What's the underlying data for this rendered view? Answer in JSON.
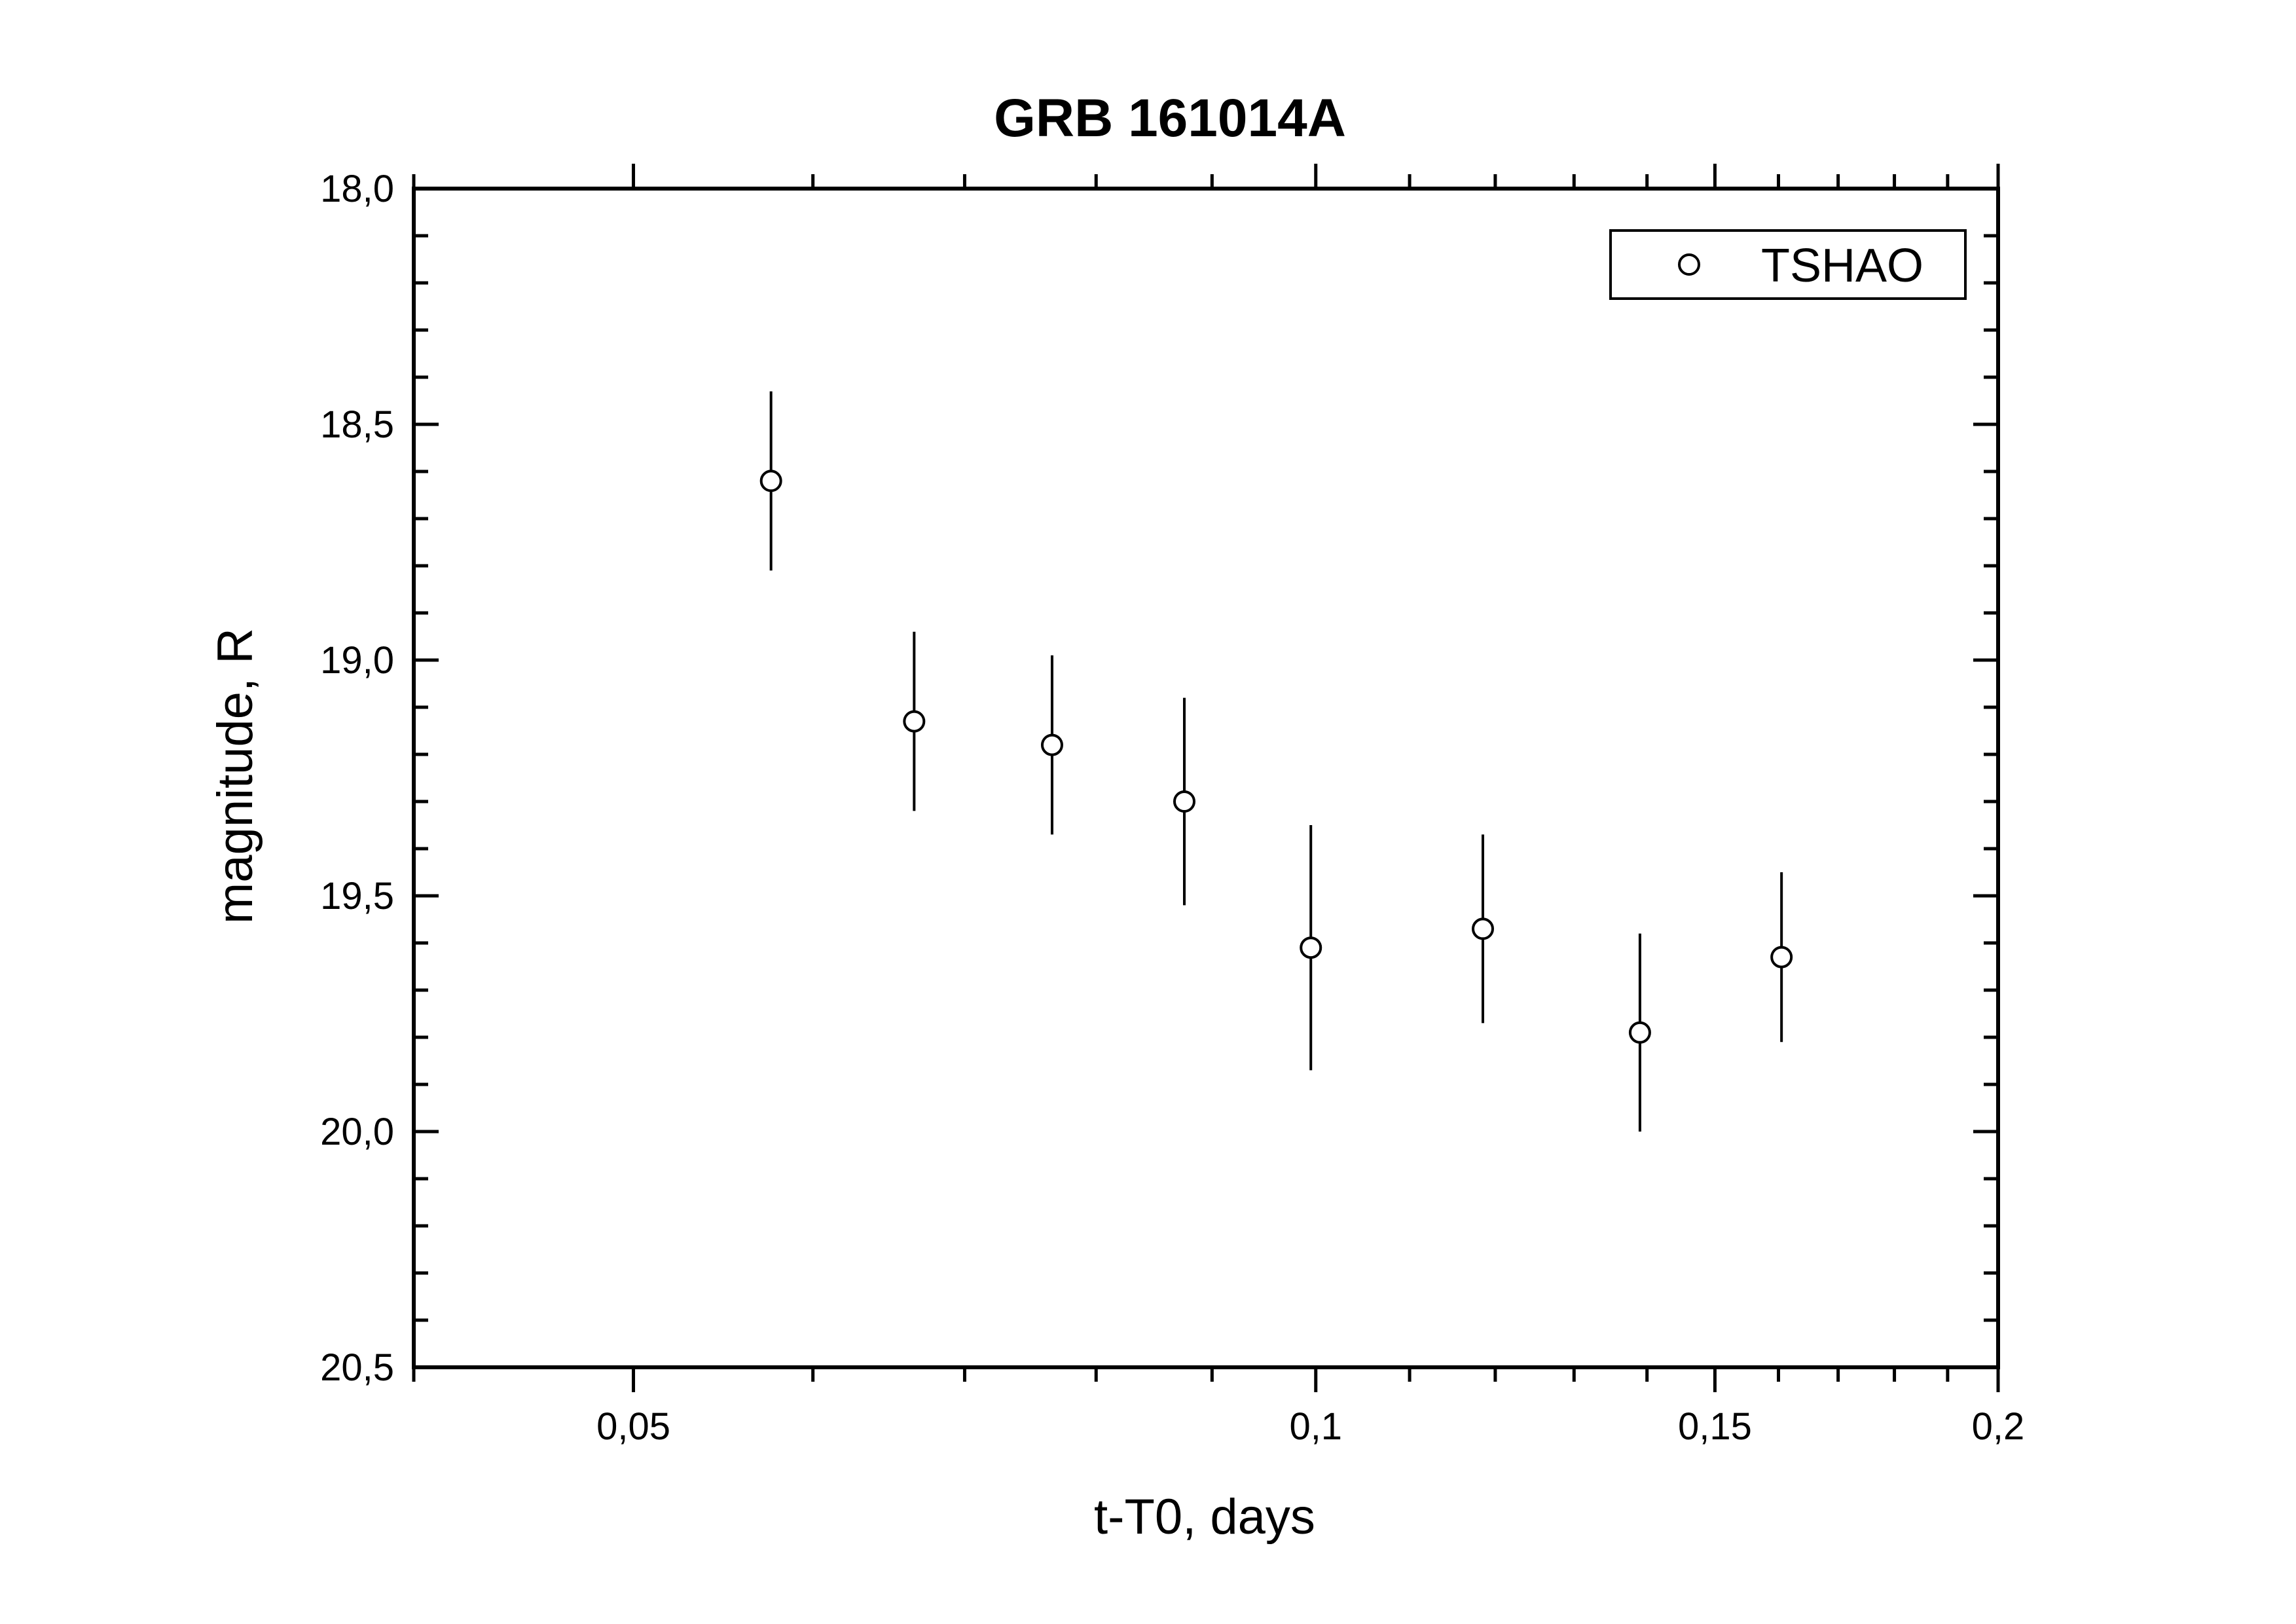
{
  "chart_data": {
    "type": "scatter",
    "title": "GRB 161014A",
    "xlabel": "t-T0, days",
    "ylabel": "magnitude, R",
    "x_scale": "log",
    "xlim": [
      0.04,
      0.2
    ],
    "ylim": [
      18.0,
      20.5
    ],
    "y_inverted": true,
    "xticks": [
      {
        "value": 0.05,
        "label": "0,05"
      },
      {
        "value": 0.1,
        "label": "0,1"
      },
      {
        "value": 0.15,
        "label": "0,15"
      },
      {
        "value": 0.2,
        "label": "0,2"
      }
    ],
    "yticks": [
      {
        "value": 18.0,
        "label": "18,0"
      },
      {
        "value": 18.5,
        "label": "18,5"
      },
      {
        "value": 19.0,
        "label": "19,0"
      },
      {
        "value": 19.5,
        "label": "19,5"
      },
      {
        "value": 20.0,
        "label": "20,0"
      },
      {
        "value": 20.5,
        "label": "20,5"
      }
    ],
    "legend": {
      "position": "top-right",
      "entries": [
        "TSHAO"
      ]
    },
    "grid": false,
    "series": [
      {
        "name": "TSHAO",
        "marker": "open-circle",
        "color": "#000000",
        "points": [
          {
            "x": 0.0575,
            "y": 18.62,
            "err": 0.19
          },
          {
            "x": 0.0665,
            "y": 19.13,
            "err": 0.19
          },
          {
            "x": 0.0765,
            "y": 19.18,
            "err": 0.19
          },
          {
            "x": 0.0875,
            "y": 19.3,
            "err": 0.22
          },
          {
            "x": 0.0995,
            "y": 19.61,
            "err": 0.26
          },
          {
            "x": 0.1185,
            "y": 19.57,
            "err": 0.2
          },
          {
            "x": 0.139,
            "y": 19.79,
            "err": 0.21
          },
          {
            "x": 0.1605,
            "y": 19.63,
            "err": 0.18
          }
        ]
      }
    ]
  }
}
